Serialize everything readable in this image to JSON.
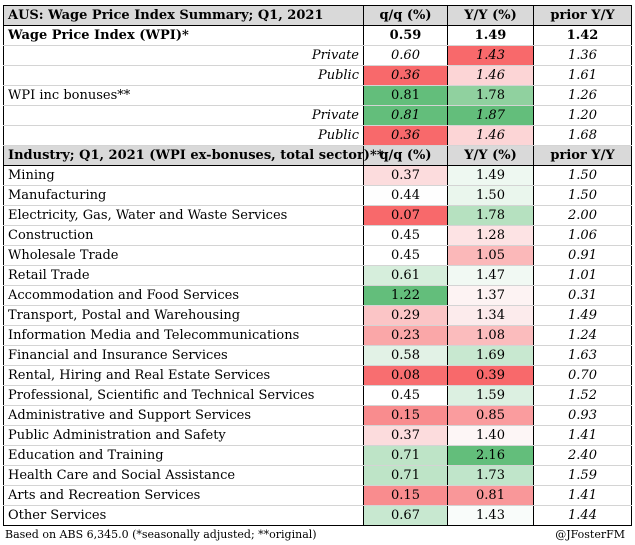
{
  "header": {
    "title": "AUS: Wage Price Index Summary; Q1, 2021",
    "col_qq": "q/q (%)",
    "col_yy": "Y/Y (%)",
    "col_prior": "prior Y/Y"
  },
  "summary_rows": [
    {
      "label": "Wage Price Index (WPI)*",
      "qq": "0.59",
      "yy": "1.49",
      "prior": "1.42",
      "style": "wpi",
      "qq_color": "#ffffff",
      "yy_color": "#ffffff"
    },
    {
      "label": "Private",
      "qq": "0.60",
      "yy": "1.43",
      "prior": "1.36",
      "style": "sub",
      "qq_color": "#ffffff",
      "yy_color": "#f8696b"
    },
    {
      "label": "Public",
      "qq": "0.36",
      "yy": "1.46",
      "prior": "1.61",
      "style": "sub",
      "qq_color": "#f8696b",
      "yy_color": "#fcd5d6"
    },
    {
      "label": "WPI inc bonuses**",
      "qq": "0.81",
      "yy": "1.78",
      "prior": "1.26",
      "style": "plain",
      "qq_color": "#63be7b",
      "yy_color": "#90d19f"
    },
    {
      "label": "Private",
      "qq": "0.81",
      "yy": "1.87",
      "prior": "1.20",
      "style": "sub",
      "qq_color": "#63be7b",
      "yy_color": "#63be7b"
    },
    {
      "label": "Public",
      "qq": "0.36",
      "yy": "1.46",
      "prior": "1.68",
      "style": "sub",
      "qq_color": "#f8696b",
      "yy_color": "#fcd5d6"
    }
  ],
  "industry_header": {
    "title": "Industry; Q1, 2021 (WPI ex-bonuses, total sector)**",
    "col_qq": "q/q (%)",
    "col_yy": "Y/Y (%)",
    "col_prior": "prior Y/Y"
  },
  "industry_rows": [
    {
      "label": "Mining",
      "qq": "0.37",
      "yy": "1.49",
      "prior": "1.50",
      "qq_color": "#fcdcdd",
      "yy_color": "#eef8f1"
    },
    {
      "label": "Manufacturing",
      "qq": "0.44",
      "yy": "1.50",
      "prior": "1.50",
      "qq_color": "#fefefe",
      "yy_color": "#eaf6ed"
    },
    {
      "label": "Electricity, Gas, Water and Waste Services",
      "qq": "0.07",
      "yy": "1.78",
      "prior": "2.00",
      "qq_color": "#f8696b",
      "yy_color": "#b6e1c0"
    },
    {
      "label": "Construction",
      "qq": "0.45",
      "yy": "1.28",
      "prior": "1.06",
      "qq_color": "#ffffff",
      "yy_color": "#fde3e4"
    },
    {
      "label": "Wholesale Trade",
      "qq": "0.45",
      "yy": "1.05",
      "prior": "0.91",
      "qq_color": "#ffffff",
      "yy_color": "#fbb8b9"
    },
    {
      "label": "Retail Trade",
      "qq": "0.61",
      "yy": "1.47",
      "prior": "1.01",
      "qq_color": "#d6eedc",
      "yy_color": "#f1f9f3"
    },
    {
      "label": "Accommodation and Food Services",
      "qq": "1.22",
      "yy": "1.37",
      "prior": "0.31",
      "qq_color": "#63be7b",
      "yy_color": "#fdf3f3"
    },
    {
      "label": "Transport, Postal and Warehousing",
      "qq": "0.29",
      "yy": "1.34",
      "prior": "1.49",
      "qq_color": "#fbc5c6",
      "yy_color": "#fcebec"
    },
    {
      "label": "Information Media and Telecommunications",
      "qq": "0.23",
      "yy": "1.08",
      "prior": "1.24",
      "qq_color": "#faa7a8",
      "yy_color": "#fbbcbd"
    },
    {
      "label": "Financial and Insurance Services",
      "qq": "0.58",
      "yy": "1.69",
      "prior": "1.63",
      "qq_color": "#e2f2e6",
      "yy_color": "#c8e8d0"
    },
    {
      "label": "Rental, Hiring and Real Estate Services",
      "qq": "0.08",
      "yy": "0.39",
      "prior": "0.70",
      "qq_color": "#f86e70",
      "yy_color": "#f8696b"
    },
    {
      "label": "Professional, Scientific and Technical Services",
      "qq": "0.45",
      "yy": "1.59",
      "prior": "1.52",
      "qq_color": "#ffffff",
      "yy_color": "#dcf0e1"
    },
    {
      "label": "Administrative and Support Services",
      "qq": "0.15",
      "yy": "0.85",
      "prior": "0.93",
      "qq_color": "#f98c8e",
      "yy_color": "#fa9c9e"
    },
    {
      "label": "Public Administration and Safety",
      "qq": "0.37",
      "yy": "1.40",
      "prior": "1.41",
      "qq_color": "#fcdcdd",
      "yy_color": "#fdf6f6"
    },
    {
      "label": "Education and Training",
      "qq": "0.71",
      "yy": "2.16",
      "prior": "2.40",
      "qq_color": "#bee4c7",
      "yy_color": "#63be7b"
    },
    {
      "label": "Health Care and Social Assistance",
      "qq": "0.71",
      "yy": "1.73",
      "prior": "1.59",
      "qq_color": "#bee4c7",
      "yy_color": "#c0e5ca"
    },
    {
      "label": "Arts and Recreation Services",
      "qq": "0.15",
      "yy": "0.81",
      "prior": "1.41",
      "qq_color": "#f98c8e",
      "yy_color": "#f99799"
    },
    {
      "label": "Other Services",
      "qq": "0.67",
      "yy": "1.43",
      "prior": "1.44",
      "qq_color": "#c8e8d0",
      "yy_color": "#f9fcfa"
    }
  ],
  "footer": {
    "source": "Based on ABS 6,345.0 (*seasonally adjusted; **original)",
    "credit": "@JFosterFM"
  }
}
